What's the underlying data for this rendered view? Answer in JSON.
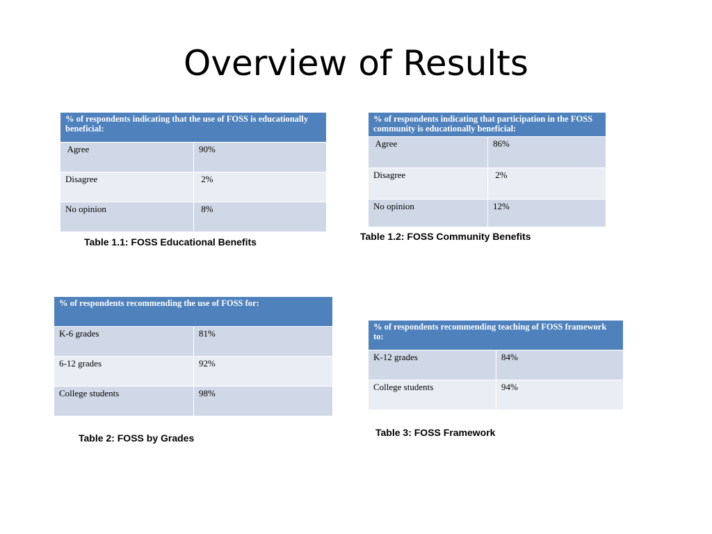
{
  "title": "Overview of Results",
  "tables": [
    {
      "header": "% of respondents indicating that the use of FOSS is educationally beneficial:",
      "rows": [
        {
          "label": " Agree",
          "value": "90%"
        },
        {
          "label": "Disagree",
          "value": " 2%"
        },
        {
          "label": "No opinion",
          "value": " 8%"
        }
      ],
      "caption": "Table 1.1: FOSS Educational Benefits"
    },
    {
      "header": "% of respondents indicating that participation in the FOSS community is educationally beneficial:",
      "rows": [
        {
          "label": " Agree",
          "value": "86%"
        },
        {
          "label": "Disagree",
          "value": " 2%"
        },
        {
          "label": "No opinion",
          "value": "12%"
        }
      ],
      "caption": "Table 1.2: FOSS Community Benefits"
    },
    {
      "header": "% of respondents recommending the use of FOSS for:",
      "rows": [
        {
          "label": "K-6 grades",
          "value": "81%"
        },
        {
          "label": "6-12 grades",
          "value": "92%"
        },
        {
          "label": "College students",
          "value": "98%"
        }
      ],
      "caption": "Table 2: FOSS by Grades"
    },
    {
      "header": "% of respondents recommending teaching of FOSS framework to:",
      "rows": [
        {
          "label": "K-12 grades",
          "value": "84%"
        },
        {
          "label": "College students",
          "value": "94%"
        }
      ],
      "caption": "Table 3: FOSS Framework"
    }
  ]
}
